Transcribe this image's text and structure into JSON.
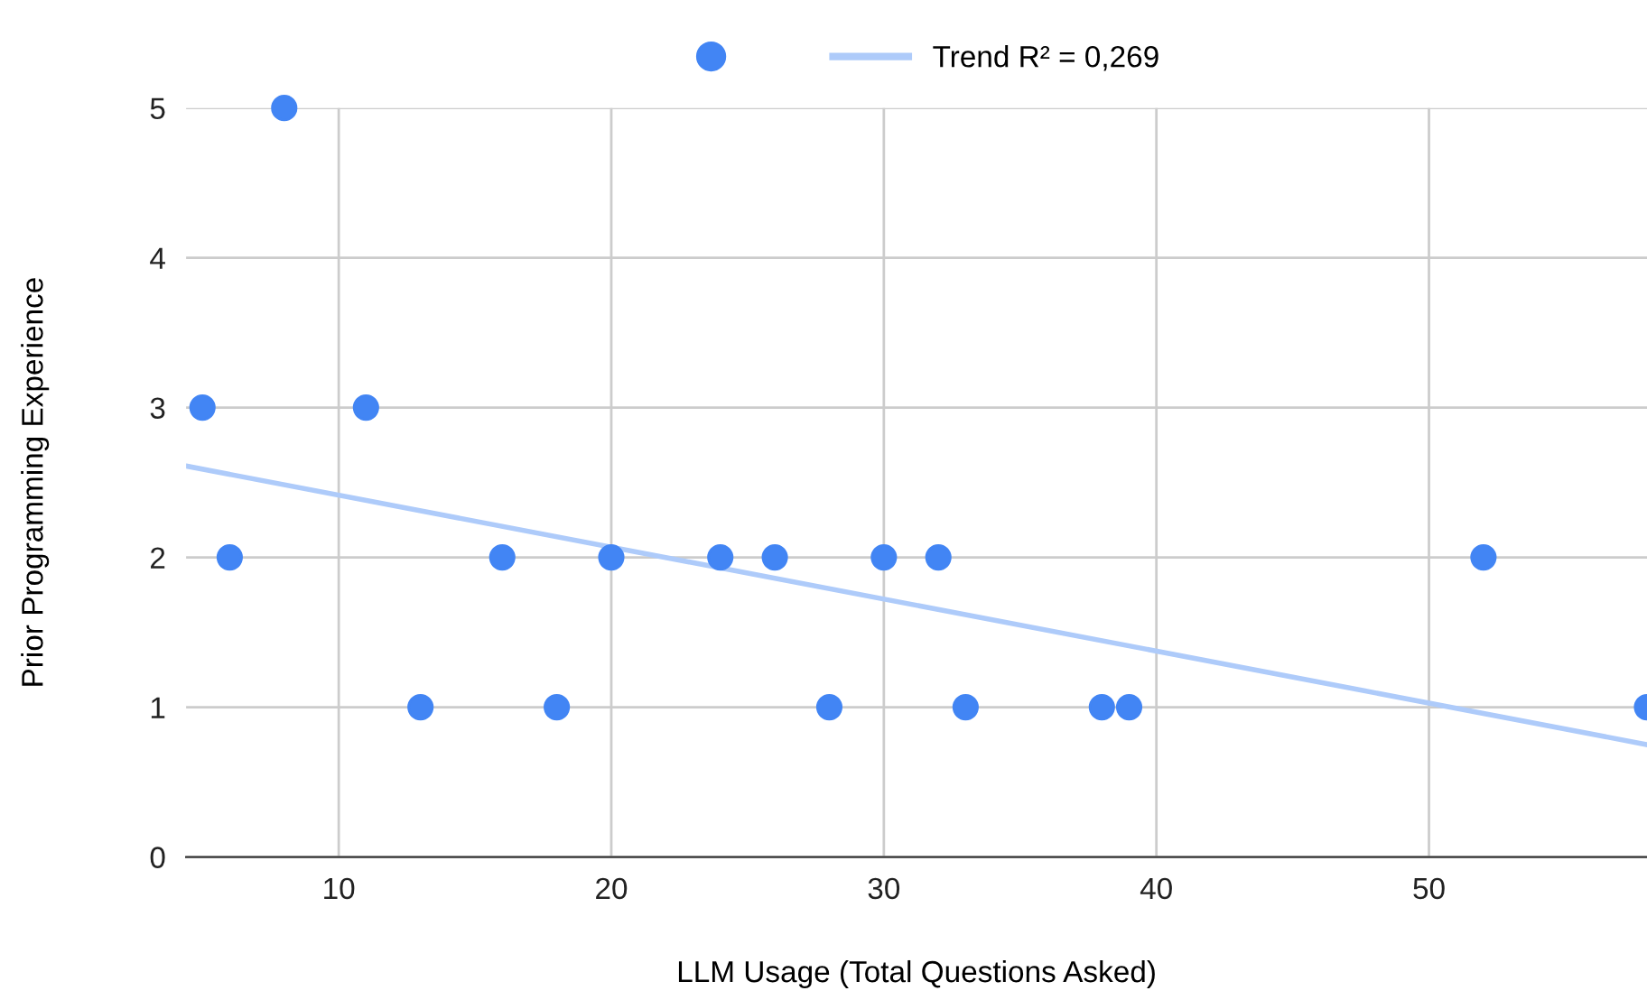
{
  "chart_data": {
    "type": "scatter",
    "xlabel": "LLM Usage (Total Questions Asked)",
    "ylabel": "Prior Programming Experience",
    "xlim": [
      4.4,
      58
    ],
    "xticks": [
      10,
      20,
      30,
      40,
      50
    ],
    "ylim": [
      0,
      5
    ],
    "yticks": [
      0,
      1,
      2,
      3,
      4,
      5
    ],
    "grid": true,
    "legend": "top",
    "series": [
      {
        "marker": "circle",
        "color": "#4285f4",
        "x": [
          5,
          6,
          8,
          11,
          13,
          16,
          18,
          20,
          24,
          26,
          28,
          30,
          32,
          33,
          38,
          39,
          52,
          58
        ],
        "values": [
          3,
          2,
          5,
          3,
          1,
          2,
          1,
          2,
          2,
          2,
          1,
          2,
          2,
          1,
          1,
          1,
          2,
          1
        ]
      },
      {
        "type": "line",
        "name": "Trend R² = 0,269",
        "color": "#aecbfa",
        "x": [
          4.4,
          58
        ],
        "values": [
          2.61,
          0.75
        ]
      }
    ]
  }
}
